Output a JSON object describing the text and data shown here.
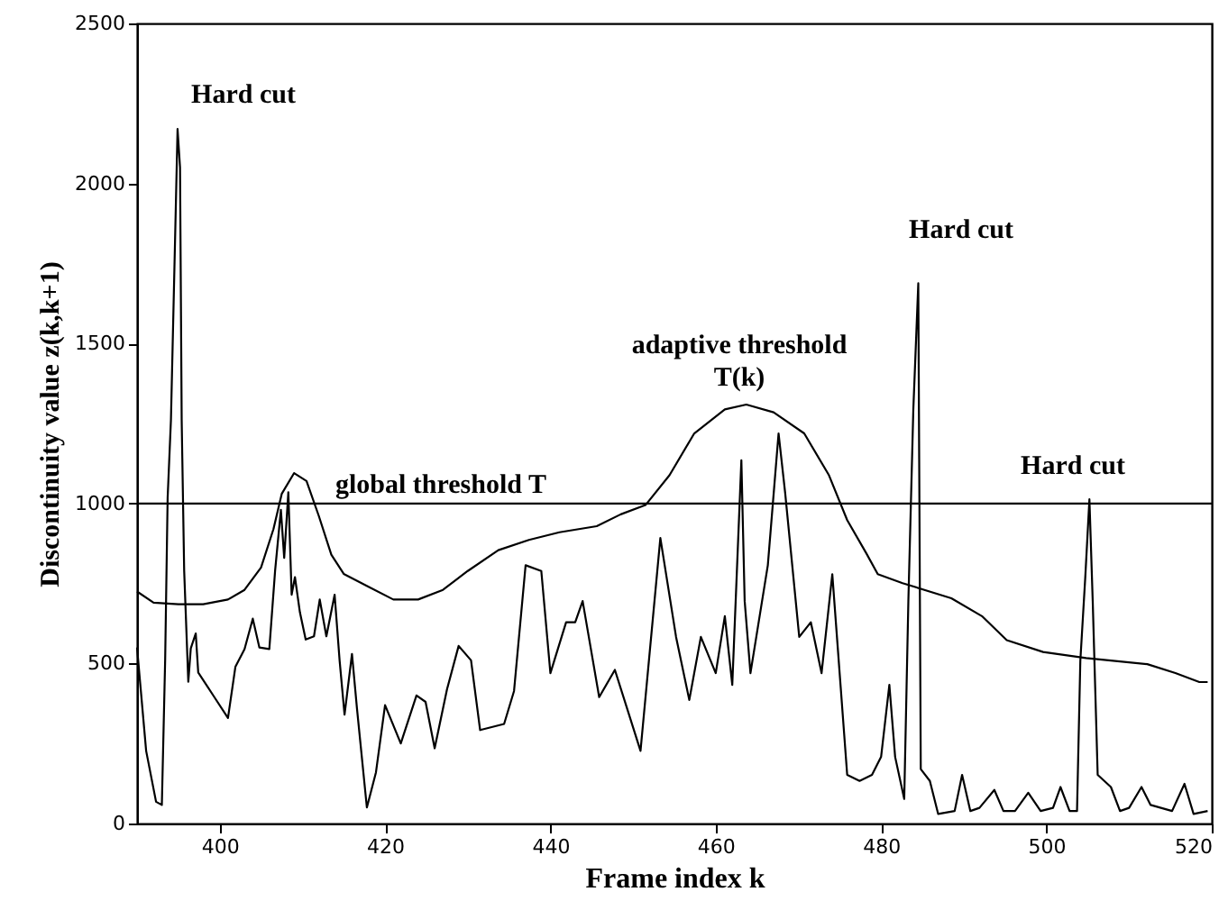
{
  "chart_data": {
    "type": "line",
    "xlabel": "Frame index k",
    "ylabel": "Discontinuity value  z(k,k+1)",
    "xlim": [
      390,
      520
    ],
    "xticks": [
      400,
      420,
      440,
      460,
      480,
      500,
      520
    ],
    "ylim": [
      0,
      2500
    ],
    "yticks": [
      0,
      500,
      1000,
      1500,
      2000,
      2500
    ],
    "grid": false,
    "marker": "none",
    "line_style": "solid",
    "series": [
      {
        "color": "#000000",
        "x": [
          390,
          391.1,
          392.3,
          393,
          393.4,
          393.7,
          394.1,
          394.6,
          394.9,
          395.2,
          395.4,
          395.7,
          396.2,
          396.5,
          397.1,
          397.4,
          399.3,
          401,
          401.9,
          403,
          404,
          404.8,
          406,
          406.7,
          407.4,
          407.8,
          408.3,
          408.7,
          409.1,
          409.7,
          410.4,
          411.4,
          412.1,
          412.9,
          413.9,
          414.5,
          415.1,
          416,
          416.6,
          417.8,
          418.9,
          420,
          421.9,
          423.8,
          424.9,
          426,
          427.5,
          428.9,
          430.4,
          431.5,
          434.4,
          435.6,
          437,
          438.9,
          440,
          441.9,
          443,
          443.9,
          445.9,
          447.8,
          450.9,
          453.3,
          455.2,
          456.8,
          458.2,
          460,
          461.1,
          462,
          463.1,
          463.5,
          464.2,
          466.3,
          467.6,
          468.4,
          470.1,
          471.5,
          472.8,
          474.1,
          475.9,
          477.4,
          478.9,
          480,
          481,
          481.7,
          482.8,
          483.3,
          483.9,
          484.5,
          484.8,
          485.9,
          486.9,
          488.9,
          489.8,
          490.8,
          491.9,
          493.7,
          494.8,
          496.2,
          497.8,
          499.3,
          500.8,
          501.7,
          502.8,
          503.7,
          504.1,
          504.7,
          505.2,
          505.6,
          506.2,
          507.8,
          508.9,
          510,
          511.5,
          512.6,
          515.2,
          516.7,
          517.8,
          519.5
        ],
        "values": [
          550,
          227,
          68,
          58,
          510,
          1017,
          1261,
          1825,
          2170,
          2050,
          1260,
          790,
          443,
          547,
          594,
          472,
          397,
          330,
          490,
          545,
          640,
          550,
          545,
          790,
          980,
          830,
          1035,
          715,
          770,
          660,
          575,
          585,
          700,
          585,
          715,
          510,
          340,
          530,
          360,
          50,
          160,
          370,
          250,
          400,
          380,
          235,
          420,
          555,
          510,
          292,
          311,
          414,
          807,
          789,
          470,
          629,
          629,
          695,
          395,
          480,
          227,
          892,
          583,
          386,
          583,
          470,
          648,
          433,
          1135,
          695,
          470,
          807,
          1219,
          1032,
          583,
          629,
          470,
          779,
          152,
          133,
          152,
          208,
          433,
          208,
          77,
          695,
          1294,
          1688,
          170,
          133,
          30,
          39,
          152,
          39,
          49,
          105,
          39,
          39,
          96,
          39,
          49,
          114,
          39,
          39,
          508,
          770,
          1013,
          695,
          152,
          114,
          39,
          49,
          114,
          58,
          39,
          124,
          30,
          39
        ]
      },
      {
        "color": "#000000",
        "x": [
          390,
          392,
          395,
          398,
          401,
          403,
          405,
          406.5,
          407.5,
          409,
          410.5,
          412,
          413.5,
          415,
          418,
          421,
          424,
          427,
          430,
          433.7,
          437.4,
          441.1,
          445.6,
          448.5,
          451.5,
          454.4,
          457.4,
          461.1,
          463.7,
          467,
          470.7,
          473.7,
          475.9,
          478.2,
          479.6,
          482.6,
          488.5,
          492.2,
          495.2,
          499.6,
          504.8,
          512.2,
          515.6,
          518.5,
          519.5
        ],
        "values": [
          725,
          690,
          685,
          685,
          700,
          730,
          800,
          920,
          1030,
          1095,
          1070,
          960,
          840,
          780,
          740,
          700,
          700,
          730,
          789,
          854,
          886,
          910,
          929,
          966,
          995,
          1088,
          1219,
          1294,
          1309,
          1285,
          1219,
          1088,
          948,
          845,
          779,
          751,
          704,
          648,
          573,
          536,
          517,
          498,
          470,
          442,
          442
        ]
      }
    ],
    "ref_lines": [
      {
        "axis": "y",
        "value": 1000,
        "label": "global threshold T",
        "color": "#000000",
        "line_style": "solid"
      }
    ],
    "annotations": [
      "Hard cut",
      "Hard cut",
      "Hard cut",
      "adaptive threshold T(k)"
    ]
  }
}
